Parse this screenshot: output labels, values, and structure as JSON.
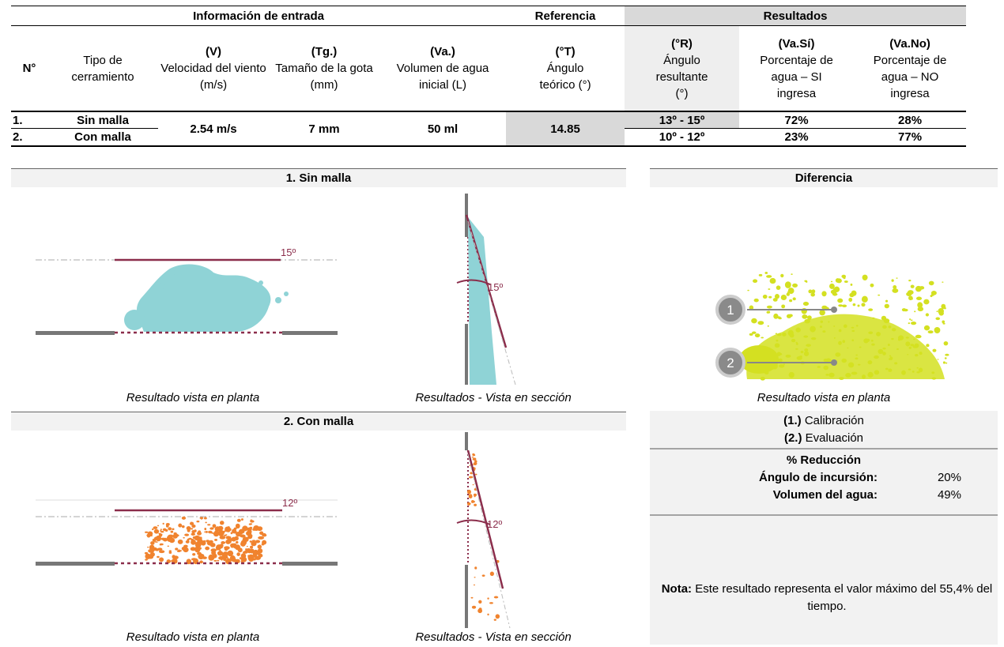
{
  "table": {
    "groups": [
      "Información de entrada",
      "Referencia",
      "Resultados"
    ],
    "columns": [
      {
        "code": "N°"
      },
      {
        "label": "Tipo de cerramiento"
      },
      {
        "code": "(V)",
        "label": "Velocidad del viento (m/s)"
      },
      {
        "code": "(Tg.)",
        "label": "Tamaño de la gota (mm)"
      },
      {
        "code": "(Va.)",
        "label": "Volumen de agua inicial (L)"
      },
      {
        "code": "(°T)",
        "label": "Ángulo teórico (°)"
      },
      {
        "code": "(°R)",
        "label": "Ángulo resultante (°)"
      },
      {
        "code": "(Va.Sí)",
        "label": "Porcentaje de agua – SI ingresa"
      },
      {
        "code": "(Va.No)",
        "label": "Porcentaje de agua – NO ingresa"
      }
    ],
    "rows": [
      {
        "number": "1.",
        "type": "Sin malla",
        "angle": "13º - 15º",
        "yes": "72%",
        "no": "28%"
      },
      {
        "number": "2.",
        "type": "Con malla",
        "angle": "10º - 12º",
        "yes": "23%",
        "no": "77%"
      }
    ],
    "shared": {
      "velocity": "2.54 m/s",
      "drop": "7 mm",
      "volume": "50 ml",
      "theoretical": "14.85"
    }
  },
  "panels": [
    {
      "title": "1. Sin malla",
      "plan_caption": "Resultado vista en planta",
      "section_caption": "Resultados - Vista en sección",
      "plan_angle": "15º",
      "section_angle": "15º"
    },
    {
      "title": "2. Con malla",
      "plan_caption": "Resultado vista en planta",
      "section_caption": "Resultados - Vista en sección",
      "plan_angle": "12º",
      "section_angle": "12º"
    }
  ],
  "difference": {
    "title": "Diferencia",
    "caption": "Resultado vista en planta",
    "markers": [
      "1",
      "2"
    ],
    "legend": [
      {
        "code": "(1.)",
        "label": "Calibración"
      },
      {
        "code": "(2.)",
        "label": "Evaluación"
      }
    ]
  },
  "reduction": {
    "title": "% Reducción",
    "rows": [
      {
        "label": "Ángulo de incursión:",
        "value": "20%"
      },
      {
        "label": "Volumen del agua:",
        "value": "49%"
      }
    ]
  },
  "note": {
    "label": "Nota:",
    "text": "Este resultado representa el valor máximo del 55,4% del tiempo."
  }
}
